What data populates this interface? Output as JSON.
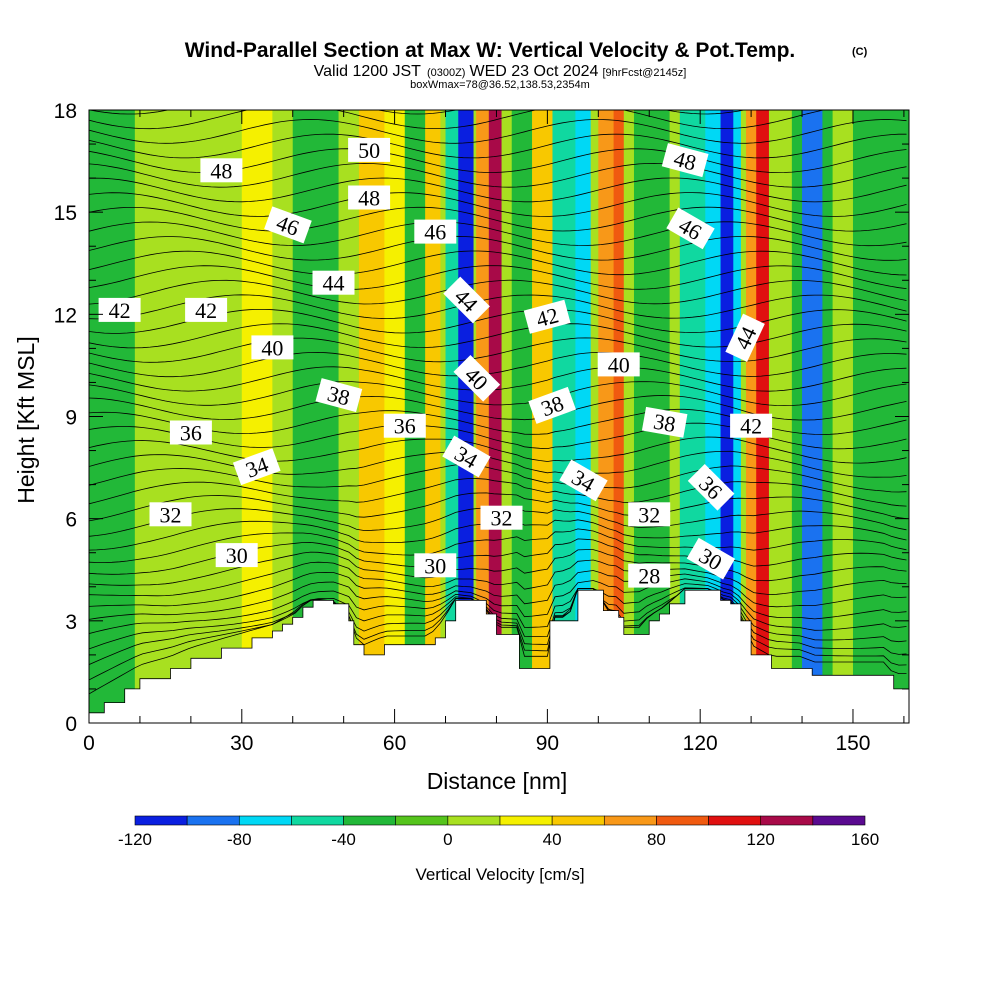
{
  "chart_data": {
    "type": "heatmap",
    "title": "Wind-Parallel Section at Max W: Vertical Velocity & Pot.Temp.",
    "title_mark": "(C)",
    "subtitle": {
      "part1": "Valid 1200 JST",
      "part2": "(0300Z)",
      "part3": "WED 23 Oct 2024",
      "part4": "[9hrFcst@2145z]"
    },
    "subtitle2": "boxWmax=78@36.52,138.53,2354m",
    "xlabel": "Distance [nm]",
    "ylabel": "Height [Kft MSL]",
    "xlim": [
      0,
      161
    ],
    "ylim": [
      0,
      18
    ],
    "x_ticks": [
      0,
      30,
      60,
      90,
      120,
      150
    ],
    "y_ticks": [
      0,
      3,
      6,
      9,
      12,
      15,
      18
    ],
    "colorbar": {
      "label": "Vertical Velocity [cm/s]",
      "ticks": [
        -120,
        -80,
        -40,
        0,
        40,
        80,
        120,
        160
      ],
      "bounds": [
        -120,
        -100,
        -80,
        -60,
        -40,
        -20,
        0,
        20,
        40,
        60,
        80,
        100,
        120,
        140,
        160
      ],
      "colors": [
        "#0a1fe0",
        "#1a72f0",
        "#00d8f5",
        "#10d8a0",
        "#22b838",
        "#55c41c",
        "#a8e020",
        "#f5f000",
        "#f8c800",
        "#f89818",
        "#f05a10",
        "#e01010",
        "#a80a48",
        "#5a0a90"
      ]
    },
    "velocity_columns": [
      {
        "x": 0,
        "w": 161,
        "v": 5
      },
      {
        "x": 0,
        "w": 14,
        "v": -28
      },
      {
        "x": 9,
        "w": 7,
        "v": 8
      },
      {
        "x": 30,
        "w": 6,
        "v": 30
      },
      {
        "x": 40,
        "w": 9,
        "v": -35
      },
      {
        "x": 53,
        "w": 6,
        "v": 45
      },
      {
        "x": 58,
        "w": 5,
        "v": 25
      },
      {
        "x": 62,
        "w": 5,
        "v": -30
      },
      {
        "x": 66,
        "w": 3,
        "v": 55
      },
      {
        "x": 70,
        "w": 3,
        "v": -55
      },
      {
        "x": 72.5,
        "w": 3,
        "v": -105
      },
      {
        "x": 76,
        "w": 4,
        "v": 70
      },
      {
        "x": 78.5,
        "w": 2.5,
        "v": 125
      },
      {
        "x": 83,
        "w": 4,
        "v": -35
      },
      {
        "x": 87,
        "w": 4,
        "v": 45
      },
      {
        "x": 91,
        "w": 5,
        "v": -48
      },
      {
        "x": 95.5,
        "w": 3,
        "v": -62
      },
      {
        "x": 100,
        "w": 4,
        "v": 65
      },
      {
        "x": 103,
        "w": 2,
        "v": 85
      },
      {
        "x": 107,
        "w": 7,
        "v": -30
      },
      {
        "x": 116,
        "w": 9,
        "v": -48
      },
      {
        "x": 121,
        "w": 7,
        "v": -68
      },
      {
        "x": 124,
        "w": 2.5,
        "v": -118
      },
      {
        "x": 129,
        "w": 4,
        "v": 75
      },
      {
        "x": 131,
        "w": 2.5,
        "v": 108
      },
      {
        "x": 138,
        "w": 8,
        "v": -30
      },
      {
        "x": 140,
        "w": 4,
        "v": -85
      },
      {
        "x": 150,
        "w": 11,
        "v": -25
      }
    ],
    "contour_labels": [
      {
        "text": "48",
        "x": 26,
        "y": 16.2,
        "angle": 0
      },
      {
        "text": "50",
        "x": 55,
        "y": 16.8,
        "angle": 0
      },
      {
        "text": "48",
        "x": 55,
        "y": 15.4,
        "angle": 0
      },
      {
        "text": "46",
        "x": 39,
        "y": 14.6,
        "angle": 20
      },
      {
        "text": "46",
        "x": 68,
        "y": 14.4,
        "angle": 0
      },
      {
        "text": "48",
        "x": 117,
        "y": 16.5,
        "angle": 15
      },
      {
        "text": "46",
        "x": 118,
        "y": 14.5,
        "angle": 30
      },
      {
        "text": "44",
        "x": 48,
        "y": 12.9,
        "angle": 0
      },
      {
        "text": "44",
        "x": 74,
        "y": 12.4,
        "angle": 45
      },
      {
        "text": "42",
        "x": 6,
        "y": 12.1,
        "angle": 0
      },
      {
        "text": "42",
        "x": 23,
        "y": 12.1,
        "angle": 0
      },
      {
        "text": "42",
        "x": 90,
        "y": 11.9,
        "angle": -15
      },
      {
        "text": "44",
        "x": 129,
        "y": 11.3,
        "angle": -65
      },
      {
        "text": "40",
        "x": 36,
        "y": 11.0,
        "angle": 0
      },
      {
        "text": "40",
        "x": 76,
        "y": 10.1,
        "angle": 45
      },
      {
        "text": "40",
        "x": 104,
        "y": 10.5,
        "angle": 0
      },
      {
        "text": "38",
        "x": 49,
        "y": 9.6,
        "angle": 15
      },
      {
        "text": "38",
        "x": 91,
        "y": 9.3,
        "angle": -20
      },
      {
        "text": "38",
        "x": 113,
        "y": 8.8,
        "angle": 10
      },
      {
        "text": "42",
        "x": 130,
        "y": 8.7,
        "angle": 0
      },
      {
        "text": "36",
        "x": 20,
        "y": 8.5,
        "angle": 0
      },
      {
        "text": "36",
        "x": 62,
        "y": 8.7,
        "angle": 0
      },
      {
        "text": "34",
        "x": 33,
        "y": 7.5,
        "angle": -20
      },
      {
        "text": "34",
        "x": 74,
        "y": 7.8,
        "angle": 30
      },
      {
        "text": "34",
        "x": 97,
        "y": 7.1,
        "angle": 30
      },
      {
        "text": "36",
        "x": 122,
        "y": 6.9,
        "angle": 45
      },
      {
        "text": "32",
        "x": 16,
        "y": 6.1,
        "angle": 0
      },
      {
        "text": "32",
        "x": 81,
        "y": 6.0,
        "angle": 0
      },
      {
        "text": "32",
        "x": 110,
        "y": 6.1,
        "angle": 0
      },
      {
        "text": "30",
        "x": 29,
        "y": 4.9,
        "angle": 0
      },
      {
        "text": "30",
        "x": 68,
        "y": 4.6,
        "angle": 0
      },
      {
        "text": "28",
        "x": 110,
        "y": 4.3,
        "angle": 0
      },
      {
        "text": "30",
        "x": 122,
        "y": 4.8,
        "angle": 30
      }
    ],
    "terrain": [
      [
        0,
        0.3
      ],
      [
        3,
        0.6
      ],
      [
        7,
        1.0
      ],
      [
        10,
        1.3
      ],
      [
        16,
        1.6
      ],
      [
        20,
        1.9
      ],
      [
        26,
        2.2
      ],
      [
        32,
        2.5
      ],
      [
        36,
        2.7
      ],
      [
        38,
        2.9
      ],
      [
        40,
        3.1
      ],
      [
        42,
        3.4
      ],
      [
        44,
        3.6
      ],
      [
        48,
        3.5
      ],
      [
        51,
        3.0
      ],
      [
        52,
        2.3
      ],
      [
        54,
        2.0
      ],
      [
        58,
        2.3
      ],
      [
        62,
        2.3
      ],
      [
        66,
        2.3
      ],
      [
        68,
        2.5
      ],
      [
        70,
        3.0
      ],
      [
        72,
        3.6
      ],
      [
        75,
        3.6
      ],
      [
        78,
        3.2
      ],
      [
        80,
        2.6
      ],
      [
        84,
        2.6
      ],
      [
        84.5,
        1.6
      ],
      [
        90,
        1.6
      ],
      [
        90.5,
        3.0
      ],
      [
        94,
        3.0
      ],
      [
        96,
        3.9
      ],
      [
        100,
        3.9
      ],
      [
        101,
        3.3
      ],
      [
        104,
        3.1
      ],
      [
        105,
        2.6
      ],
      [
        108,
        2.6
      ],
      [
        110,
        3.0
      ],
      [
        112,
        3.2
      ],
      [
        114,
        3.5
      ],
      [
        117,
        3.9
      ],
      [
        122,
        3.9
      ],
      [
        124,
        3.6
      ],
      [
        126,
        3.5
      ],
      [
        128,
        3.0
      ],
      [
        130,
        2.0
      ],
      [
        134,
        1.6
      ],
      [
        140,
        1.6
      ],
      [
        142,
        1.4
      ],
      [
        156,
        1.4
      ],
      [
        158,
        1.0
      ],
      [
        161,
        1.0
      ]
    ]
  }
}
